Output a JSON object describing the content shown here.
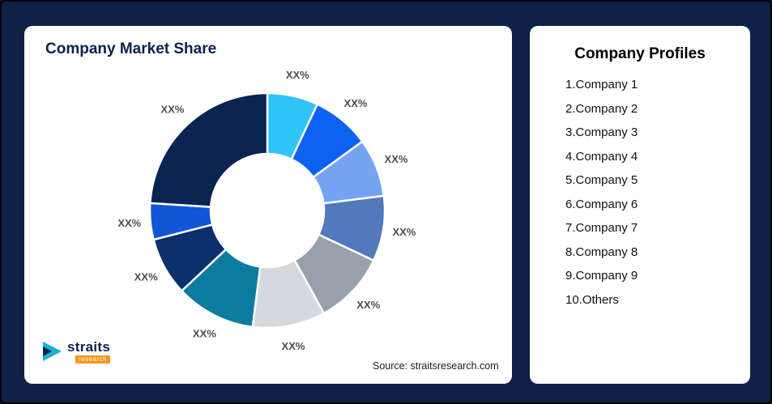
{
  "page": {
    "background": "#0e2149"
  },
  "left_card": {
    "title": "Company Market Share",
    "source": "Source: straitsresearch.com",
    "logo": {
      "name": "straits",
      "sub": "research"
    }
  },
  "profiles": {
    "title": "Company Profiles",
    "items": [
      "1.Company 1",
      "2.Company 2",
      "3.Company 3",
      "4.Company 4",
      "5.Company 5",
      "6.Company 6",
      "7.Company 7",
      "8.Company 8",
      "9.Company 9",
      "10.Others"
    ]
  },
  "chart_data": {
    "type": "pie",
    "subtype": "donut",
    "title": "Company Market Share",
    "categories": [
      "Company 1",
      "Company 2",
      "Company 3",
      "Company 4",
      "Company 5",
      "Company 6",
      "Company 7",
      "Company 8",
      "Company 9",
      "Others"
    ],
    "values": [
      7,
      8,
      8,
      9,
      10,
      10,
      11,
      8,
      5,
      24
    ],
    "values_note": "percent shares estimated from arc angles; all data labels are placeholder text",
    "slice_labels": [
      "XX%",
      "XX%",
      "XX%",
      "XX%",
      "XX%",
      "XX%",
      "XX%",
      "XX%",
      "XX%",
      "XX%"
    ],
    "colors": [
      "#2fc5f8",
      "#0d62f0",
      "#74a3f3",
      "#5278bd",
      "#97a1ab",
      "#d5d9dd",
      "#0c7da1",
      "#0e2f6d",
      "#1256d8",
      "#0a2351"
    ],
    "start_angle_deg": -90,
    "direction": "clockwise",
    "inner_radius_ratio": 0.48,
    "legend": "none",
    "label_color": "#4d4d4d",
    "stroke_color": "#ffffff"
  }
}
